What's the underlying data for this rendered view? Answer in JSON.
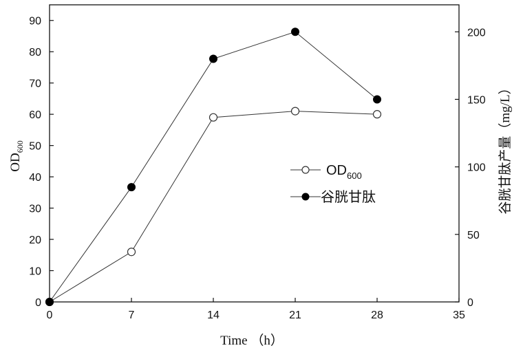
{
  "chart_data": {
    "type": "line",
    "x": [
      0,
      7,
      14,
      21,
      28
    ],
    "xlabel": "Time （h）",
    "xlim": [
      0,
      35
    ],
    "xticks": [
      "0",
      "7",
      "14",
      "21",
      "28",
      "35"
    ],
    "ylabel_main": "OD",
    "ylabel_sub": "600",
    "ylim": [
      0,
      95
    ],
    "yticks": [
      "0",
      "10",
      "20",
      "30",
      "40",
      "50",
      "60",
      "70",
      "80",
      "90"
    ],
    "y2label": "谷胱甘肽产量（mg/L）",
    "y2lim": [
      0,
      220
    ],
    "y2ticks": [
      "0",
      "50",
      "100",
      "150",
      "200"
    ],
    "series": [
      {
        "name": "OD",
        "name_sub": "600",
        "axis": "left",
        "marker": "open-circle",
        "values": [
          0,
          16,
          59,
          61,
          60
        ]
      },
      {
        "name": "谷胱甘肽",
        "axis": "right",
        "marker": "filled-circle",
        "values": [
          0,
          85,
          180,
          200,
          150
        ]
      }
    ],
    "legend_position": "center-right",
    "grid": false
  }
}
